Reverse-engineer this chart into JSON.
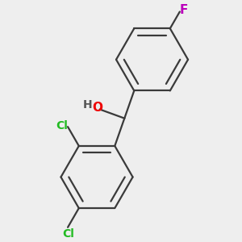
{
  "background_color": "#eeeeee",
  "bond_color": "#3a3a3a",
  "bond_width": 1.6,
  "atom_colors": {
    "O": "#ee0000",
    "H": "#555555",
    "Cl": "#22bb22",
    "F": "#bb00bb"
  },
  "font_size_main": 11,
  "font_size_small": 10,
  "inner_ratio": 0.78
}
